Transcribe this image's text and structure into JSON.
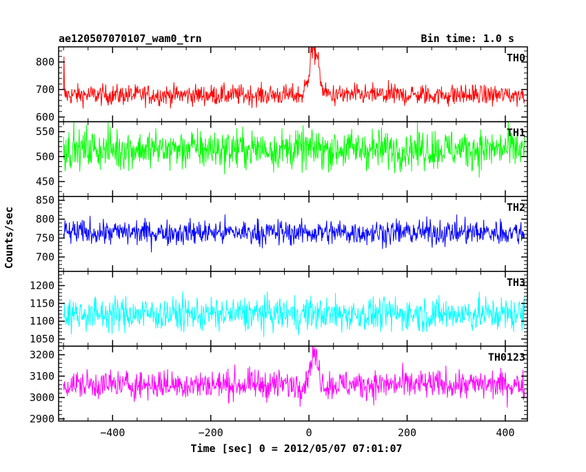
{
  "header": {
    "obs_id": "ae120507070107_wam0_trn",
    "bin_time": "Bin time: 1.0 s"
  },
  "chart_data": {
    "type": "line",
    "xlabel": "Time [sec] 0 = 2012/05/07 07:01:07",
    "ylabel": "Counts/sec",
    "xlim": [
      -510,
      445
    ],
    "x_ticks": [
      -400,
      -200,
      0,
      200,
      400
    ],
    "x_range": [
      -500,
      439
    ],
    "bin_time_s": 1.0,
    "panels": [
      {
        "name": "TH0",
        "color": "#ff0000",
        "ylim": [
          583,
          855
        ],
        "y_ticks": [
          600,
          700,
          800
        ],
        "baseline": 680,
        "noise": 36,
        "features": [
          {
            "x": -499,
            "value": 820
          },
          {
            "x": 10,
            "value": 855,
            "width": 20,
            "height": 170
          }
        ]
      },
      {
        "name": "TH1",
        "color": "#00ff00",
        "ylim": [
          420,
          570
        ],
        "y_ticks": [
          450,
          500,
          550
        ],
        "baseline": 515,
        "noise": 38,
        "features": []
      },
      {
        "name": "TH2",
        "color": "#0000ff",
        "ylim": [
          662,
          860
        ],
        "y_ticks": [
          700,
          750,
          800,
          850
        ],
        "baseline": 765,
        "noise": 32,
        "features": []
      },
      {
        "name": "TH3",
        "color": "#00ffff",
        "ylim": [
          1030,
          1240
        ],
        "y_ticks": [
          1050,
          1100,
          1150,
          1200
        ],
        "baseline": 1120,
        "noise": 45,
        "features": []
      },
      {
        "name": "TH0123",
        "color": "#ff00ff",
        "ylim": [
          2890,
          3240
        ],
        "y_ticks": [
          2900,
          3000,
          3100,
          3200
        ],
        "baseline": 3060,
        "noise": 65,
        "features": [
          {
            "x": 10,
            "value": 3200,
            "width": 18,
            "height": 140
          }
        ]
      }
    ]
  }
}
